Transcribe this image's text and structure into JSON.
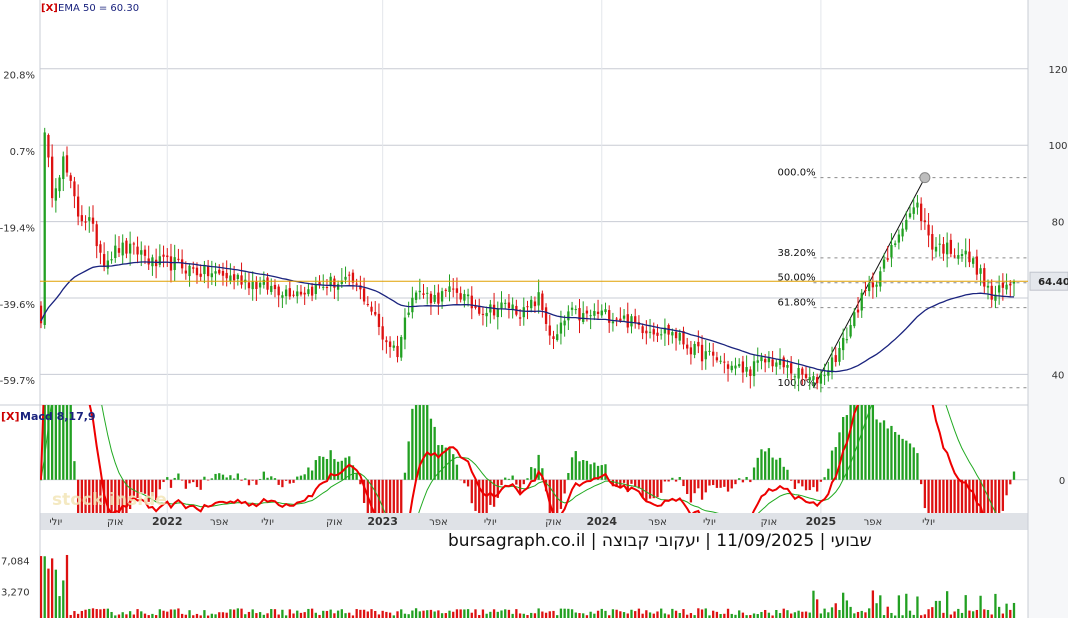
{
  "indicators": {
    "close_marker": "[X]",
    "ema_label": "EMA 50 = 60.30",
    "macd_label": "Macd 8,17,9"
  },
  "watermark": "stock inside",
  "footer": {
    "source_line": "שבועי | 11/09/2025 | יעקובי קבוצה | bursagraph.co.il"
  },
  "colors": {
    "up": "#22a022",
    "down": "#dd1111",
    "ema": "#1a237e",
    "level_line": "#e0a000",
    "macd_line": "#ee0000",
    "signal_line": "#22aa22",
    "grid": "#c8ccd4",
    "label_box": "#e4e7ec"
  },
  "chart_data": [
    {
      "type": "candlestick",
      "title": "",
      "y_right_ticks": [
        "120",
        "100",
        "80",
        "40"
      ],
      "y_left_ticks": [
        "20.8%",
        "0.7%",
        "-19.4%",
        "-39.6%",
        "-59.7%"
      ],
      "ylim": [
        32,
        138
      ],
      "last_price_label": "64.40",
      "last_price": 64.4,
      "reference_level": 64.4,
      "ema_period": 50,
      "ema_value": 60.3,
      "fibonacci": {
        "levels": [
          {
            "label": "000.0%",
            "value": 91.5
          },
          {
            "label": "38.20%",
            "value": 70.5
          },
          {
            "label": "50.00%",
            "value": 64.0
          },
          {
            "label": "61.80%",
            "value": 57.5
          },
          {
            "label": "100.0%",
            "value": 36.5
          }
        ],
        "trend_from": {
          "week": 208,
          "value": 36.5
        },
        "trend_to": {
          "week": 238,
          "value": 91.5
        }
      },
      "close_anchors": [
        [
          0,
          55
        ],
        [
          1,
          102
        ],
        [
          3,
          88
        ],
        [
          6,
          96
        ],
        [
          10,
          82
        ],
        [
          13,
          80
        ],
        [
          17,
          70
        ],
        [
          21,
          73
        ],
        [
          27,
          72
        ],
        [
          30,
          69
        ],
        [
          36,
          69
        ],
        [
          42,
          67
        ],
        [
          48,
          66
        ],
        [
          54,
          65
        ],
        [
          60,
          63
        ],
        [
          66,
          62
        ],
        [
          72,
          62
        ],
        [
          78,
          64
        ],
        [
          84,
          64
        ],
        [
          88,
          59
        ],
        [
          92,
          50
        ],
        [
          96,
          46
        ],
        [
          100,
          62
        ],
        [
          106,
          60
        ],
        [
          112,
          62
        ],
        [
          116,
          58
        ],
        [
          120,
          57
        ],
        [
          126,
          58
        ],
        [
          130,
          56
        ],
        [
          134,
          60
        ],
        [
          138,
          48
        ],
        [
          142,
          56
        ],
        [
          146,
          55
        ],
        [
          150,
          56
        ],
        [
          156,
          55
        ],
        [
          160,
          53
        ],
        [
          164,
          52
        ],
        [
          170,
          51
        ],
        [
          176,
          46
        ],
        [
          182,
          44
        ],
        [
          186,
          42
        ],
        [
          190,
          41
        ],
        [
          196,
          44
        ],
        [
          200,
          42
        ],
        [
          204,
          40
        ],
        [
          208,
          38
        ],
        [
          212,
          42
        ],
        [
          216,
          48
        ],
        [
          220,
          58
        ],
        [
          224,
          64
        ],
        [
          228,
          70
        ],
        [
          232,
          80
        ],
        [
          236,
          84
        ],
        [
          240,
          74
        ],
        [
          244,
          73
        ],
        [
          248,
          72
        ],
        [
          252,
          68
        ],
        [
          256,
          60
        ],
        [
          260,
          63
        ],
        [
          262,
          64.4
        ]
      ]
    },
    {
      "type": "macd",
      "name": "Macd 8,17,9",
      "zero_tick": "0",
      "ylim": [
        -1.6,
        3.6
      ],
      "weeks": 263
    },
    {
      "type": "volume",
      "y_ticks": [
        "7,084",
        "3,270"
      ],
      "ylim": [
        0,
        8600
      ]
    }
  ],
  "x_axis": {
    "labels": [
      {
        "text": "יולי",
        "week": 4
      },
      {
        "text": "אוק",
        "week": 20
      },
      {
        "text": "2022",
        "week": 34
      },
      {
        "text": "אפר",
        "week": 48
      },
      {
        "text": "יולי",
        "week": 61
      },
      {
        "text": "אוק",
        "week": 79
      },
      {
        "text": "2023",
        "week": 92
      },
      {
        "text": "אפר",
        "week": 107
      },
      {
        "text": "יולי",
        "week": 121
      },
      {
        "text": "אוק",
        "week": 138
      },
      {
        "text": "2024",
        "week": 151
      },
      {
        "text": "אפר",
        "week": 166
      },
      {
        "text": "יולי",
        "week": 180
      },
      {
        "text": "אוק",
        "week": 196
      },
      {
        "text": "2025",
        "week": 210
      },
      {
        "text": "אפר",
        "week": 224
      },
      {
        "text": "יולי",
        "week": 239
      }
    ],
    "year_weeks": [
      34,
      92,
      151,
      210
    ]
  }
}
